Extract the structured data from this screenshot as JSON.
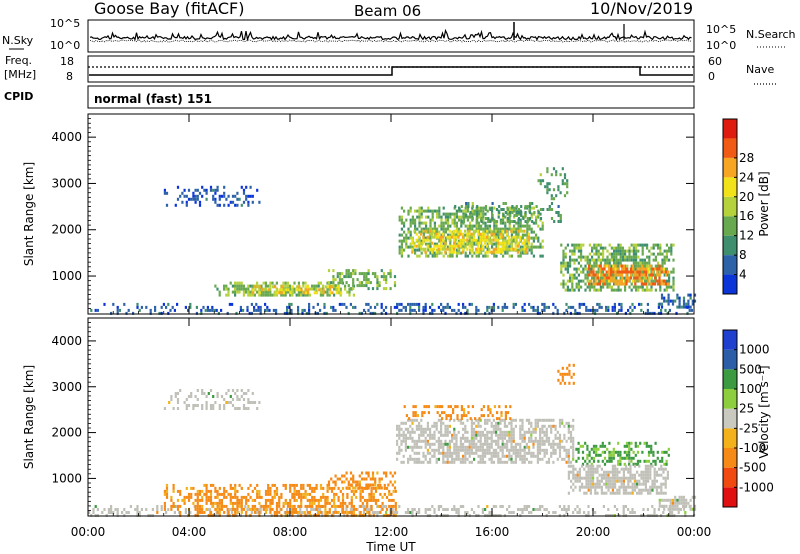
{
  "header": {
    "site": "Goose Bay (fitACF)",
    "beam": "Beam 06",
    "date": "10/Nov/2019"
  },
  "noise_panel": {
    "left_label": "N.Sky",
    "right_label": "N.Search",
    "left_ticks": [
      "10^5",
      "10^0"
    ],
    "right_ticks": [
      "10^5",
      "10^0"
    ]
  },
  "freq_panel": {
    "left_label_1": "Freq.",
    "left_label_2": "[MHz]",
    "right_label": "Nave",
    "left_ticks": [
      "18",
      "8"
    ],
    "right_ticks": [
      "60",
      "0"
    ]
  },
  "cpid_panel": {
    "label": "CPID",
    "value": "normal (fast) 151"
  },
  "colors": {
    "power": [
      "#0b35d9",
      "#2e62a8",
      "#3f8f6e",
      "#68a84f",
      "#b5d23c",
      "#f2e21a",
      "#f6a623",
      "#f05a14",
      "#df1b0f"
    ],
    "velocity": [
      "#e01010",
      "#f04a10",
      "#f58a16",
      "#f3b21c",
      "#c9c9c0",
      "#8cce3e",
      "#3c9a40",
      "#2c5ea8",
      "#1f3fcf"
    ],
    "ground_scatter": "#c0c0b8"
  },
  "power_scale": {
    "label": "Power [dB]",
    "ticks": [
      "4",
      "8",
      "12",
      "16",
      "20",
      "24",
      "28"
    ]
  },
  "velocity_scale": {
    "label": "Velocity [m s⁻¹]",
    "ticks": [
      "-1000",
      "-500",
      "-100",
      "-25",
      "25",
      "100",
      "500",
      "1000"
    ]
  },
  "axes": {
    "xlabel": "Time UT",
    "ylabel": "Slant Range [km]"
  },
  "chart_data": {
    "type": "heatmap",
    "x_ticks": [
      "00:00",
      "04:00",
      "08:00",
      "12:00",
      "16:00",
      "20:00",
      "00:00"
    ],
    "y_ticks": [
      "1000",
      "2000",
      "3000",
      "4000"
    ],
    "xlim": [
      0,
      24
    ],
    "ylim": [
      180,
      4500
    ],
    "power_panel": {
      "regions": [
        {
          "t0": 0.0,
          "t1": 24.0,
          "r0": 200,
          "r1": 420,
          "value": 6,
          "density": 0.4
        },
        {
          "t0": 3.0,
          "t1": 6.8,
          "r0": 2500,
          "r1": 2950,
          "value": 5,
          "density": 0.35
        },
        {
          "t0": 5.0,
          "t1": 10.5,
          "r0": 580,
          "r1": 880,
          "value": 15,
          "density": 0.75
        },
        {
          "t0": 6.5,
          "t1": 10.0,
          "r0": 640,
          "r1": 800,
          "value": 22,
          "density": 0.6
        },
        {
          "t0": 9.5,
          "t1": 12.2,
          "r0": 760,
          "r1": 1150,
          "value": 14,
          "density": 0.65
        },
        {
          "t0": 12.3,
          "t1": 18.0,
          "r0": 1400,
          "r1": 2500,
          "value": 14,
          "density": 0.7
        },
        {
          "t0": 12.8,
          "t1": 17.5,
          "r0": 1500,
          "r1": 2000,
          "value": 22,
          "density": 0.7
        },
        {
          "t0": 14.5,
          "t1": 18.8,
          "r0": 2150,
          "r1": 2600,
          "value": 12,
          "density": 0.35
        },
        {
          "t0": 17.8,
          "t1": 19.0,
          "r0": 2700,
          "r1": 3350,
          "value": 12,
          "density": 0.4
        },
        {
          "t0": 18.7,
          "t1": 23.2,
          "r0": 700,
          "r1": 1700,
          "value": 14,
          "density": 0.75
        },
        {
          "t0": 19.8,
          "t1": 23.0,
          "r0": 850,
          "r1": 1250,
          "value": 27,
          "density": 0.8
        },
        {
          "t0": 22.6,
          "t1": 24.0,
          "r0": 350,
          "r1": 620,
          "value": 6,
          "density": 0.7
        }
      ]
    },
    "velocity_panel": {
      "regions": [
        {
          "t0": 0.0,
          "t1": 24.0,
          "r0": 200,
          "r1": 420,
          "value": 0,
          "density": 0.4
        },
        {
          "t0": 3.0,
          "t1": 6.8,
          "r0": 2500,
          "r1": 2950,
          "value": 0,
          "density": 0.35
        },
        {
          "t0": 3.0,
          "t1": 12.2,
          "r0": 220,
          "r1": 880,
          "value": -180,
          "density": 0.55
        },
        {
          "t0": 9.5,
          "t1": 12.2,
          "r0": 760,
          "r1": 1150,
          "value": -180,
          "density": 0.5
        },
        {
          "t0": 12.2,
          "t1": 19.2,
          "r0": 1350,
          "r1": 2300,
          "value": 0,
          "density": 0.75
        },
        {
          "t0": 12.5,
          "t1": 17.0,
          "r0": 2300,
          "r1": 2600,
          "value": -200,
          "density": 0.35
        },
        {
          "t0": 18.5,
          "t1": 19.2,
          "r0": 3100,
          "r1": 3500,
          "value": -250,
          "density": 0.45
        },
        {
          "t0": 19.3,
          "t1": 23.0,
          "r0": 1300,
          "r1": 1800,
          "value": 150,
          "density": 0.5
        },
        {
          "t0": 19.0,
          "t1": 23.0,
          "r0": 700,
          "r1": 1300,
          "value": 0,
          "density": 0.8
        },
        {
          "t0": 22.6,
          "t1": 24.0,
          "r0": 350,
          "r1": 620,
          "value": 0,
          "density": 0.7
        }
      ]
    }
  }
}
